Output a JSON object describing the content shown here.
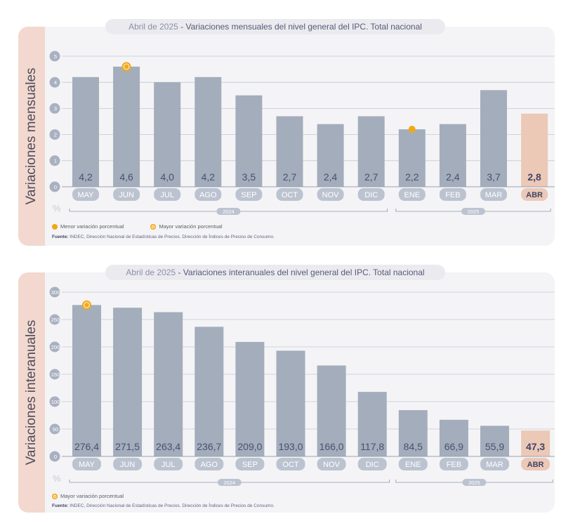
{
  "colors": {
    "bar": "#a3adbc",
    "bar_highlight": "#ecc8b7",
    "marker": "#f0a819",
    "accent_side": "#f2d8cf"
  },
  "chart_data": [
    {
      "type": "bar",
      "title_date": "Abril de 2025",
      "title_sep": " - ",
      "title": "Variaciones mensuales del nivel general del IPC. Total nacional",
      "side_label": "Variaciones mensuales",
      "unit": "%",
      "categories": [
        "MAY",
        "JUN",
        "JUL",
        "AGO",
        "SEP",
        "OCT",
        "NOV",
        "DIC",
        "ENE",
        "FEB",
        "MAR",
        "ABR"
      ],
      "values": [
        4.2,
        4.6,
        4.0,
        4.2,
        3.5,
        2.7,
        2.4,
        2.7,
        2.2,
        2.4,
        3.7,
        2.8
      ],
      "value_labels": [
        "4,2",
        "4,6",
        "4,0",
        "4,2",
        "3,5",
        "2,7",
        "2,4",
        "2,7",
        "2,2",
        "2,4",
        "3,7",
        "2,8"
      ],
      "yticks": [
        "0",
        "1",
        "2",
        "3",
        "4",
        "5"
      ],
      "ylim": [
        0,
        5
      ],
      "years": [
        {
          "label": "2024",
          "span": [
            0,
            7
          ]
        },
        {
          "label": "2025",
          "span": [
            8,
            11
          ]
        }
      ],
      "highlight_index": 11,
      "max_index": 1,
      "min_index": 8,
      "legend": [
        "Menor variación porcentual",
        "Mayor variación porcentual"
      ],
      "source_label": "Fuente:",
      "source": "INDEC, Dirección Nacional de Estadísticas de Precios. Dirección de Índices de Precios de Consumo."
    },
    {
      "type": "bar",
      "title_date": "Abril de 2025",
      "title_sep": " - ",
      "title": "Variaciones interanuales del nivel general del IPC. Total nacional",
      "side_label": "Variaciones interanuales",
      "unit": "%",
      "categories": [
        "MAY",
        "JUN",
        "JUL",
        "AGO",
        "SEP",
        "OCT",
        "NOV",
        "DIC",
        "ENE",
        "FEB",
        "MAR",
        "ABR"
      ],
      "values": [
        276.4,
        271.5,
        263.4,
        236.7,
        209.0,
        193.0,
        166.0,
        117.8,
        84.5,
        66.9,
        55.9,
        47.3
      ],
      "value_labels": [
        "276,4",
        "271,5",
        "263,4",
        "236,7",
        "209,0",
        "193,0",
        "166,0",
        "117,8",
        "84,5",
        "66,9",
        "55,9",
        "47,3"
      ],
      "yticks": [
        "0",
        "50",
        "100",
        "150",
        "200",
        "250",
        "300"
      ],
      "ylim": [
        0,
        300
      ],
      "years": [
        {
          "label": "2024",
          "span": [
            0,
            7
          ]
        },
        {
          "label": "2025",
          "span": [
            8,
            11
          ]
        }
      ],
      "highlight_index": 11,
      "max_index": 0,
      "legend": [
        "Mayor variación porcentual"
      ],
      "source_label": "Fuente:",
      "source": "INDEC, Dirección Nacional de Estadísticas de Precios. Dirección de Índices de Precios de Consumo."
    }
  ]
}
